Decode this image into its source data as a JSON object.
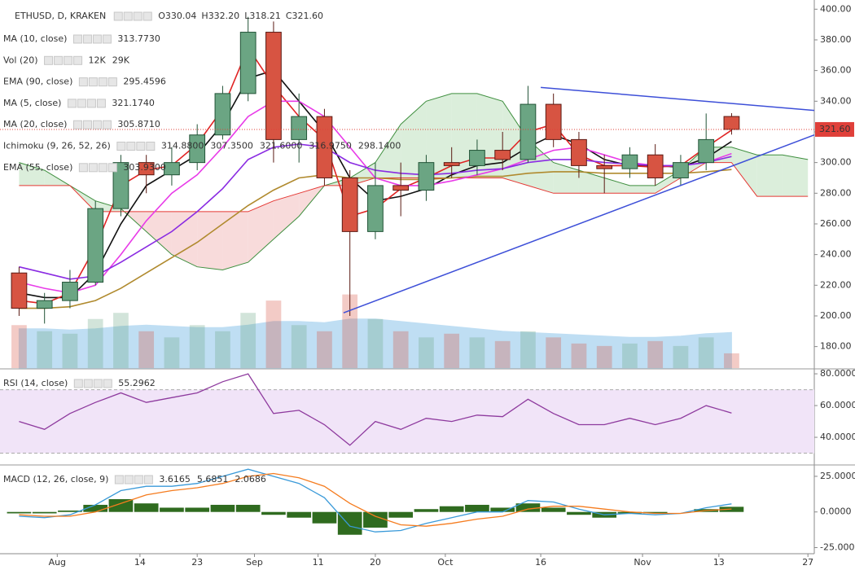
{
  "chart_data": [
    {
      "type": "candlestick",
      "title": "ETHUSD, D, KRAKEN",
      "ohlc_letters": [
        "O",
        "H",
        "L",
        "C"
      ],
      "last_bar_labels": [
        "330.04",
        "332.20",
        "318.21",
        "321.60"
      ],
      "x": [
        "Jul 26",
        "Jul 30",
        "Aug 3",
        "Aug 7",
        "Aug 11",
        "Aug 15",
        "Aug 19",
        "Aug 23",
        "Aug 27",
        "Aug 31",
        "Sep 4",
        "Sep 8",
        "Sep 12",
        "Sep 16",
        "Sep 20",
        "Sep 24",
        "Sep 28",
        "Oct 2",
        "Oct 6",
        "Oct 10",
        "Oct 14",
        "Oct 18",
        "Oct 22",
        "Oct 26",
        "Oct 30",
        "Nov 3",
        "Nov 7",
        "Nov 11",
        "Nov 15"
      ],
      "open": [
        228,
        205,
        210,
        222,
        270,
        300,
        292,
        300,
        318,
        345,
        385,
        315,
        330,
        290,
        255,
        285,
        282,
        300,
        298,
        308,
        302,
        338,
        315,
        298,
        296,
        305,
        290,
        300,
        330.04
      ],
      "high": [
        232,
        215,
        230,
        275,
        305,
        305,
        310,
        325,
        350,
        395,
        392,
        345,
        335,
        295,
        300,
        300,
        305,
        310,
        315,
        320,
        350,
        345,
        320,
        305,
        310,
        312,
        305,
        332,
        332.2
      ],
      "low": [
        200,
        195,
        205,
        220,
        265,
        280,
        285,
        295,
        315,
        340,
        300,
        300,
        285,
        200,
        250,
        265,
        275,
        290,
        292,
        295,
        300,
        310,
        290,
        280,
        290,
        285,
        285,
        295,
        318.21
      ],
      "close": [
        205,
        210,
        222,
        270,
        300,
        292,
        300,
        318,
        345,
        385,
        315,
        330,
        290,
        255,
        285,
        282,
        300,
        298,
        308,
        302,
        338,
        315,
        298,
        296,
        305,
        290,
        300,
        315,
        321.6
      ],
      "up_color": "#6ba583",
      "down_color": "#d75442",
      "xlim": [
        "Jul 23",
        "Nov 28"
      ],
      "xticks": [
        {
          "value": "Aug 1",
          "label": "Aug"
        },
        {
          "value": "Aug 14",
          "label": "14"
        },
        {
          "value": "Aug 23",
          "label": "23"
        },
        {
          "value": "Sep 1",
          "label": "Sep"
        },
        {
          "value": "Sep 11",
          "label": "11"
        },
        {
          "value": "Sep 20",
          "label": "20"
        },
        {
          "value": "Oct 1",
          "label": "Oct"
        },
        {
          "value": "Oct 16",
          "label": "16"
        },
        {
          "value": "Nov 1",
          "label": "Nov"
        },
        {
          "value": "Nov 13",
          "label": "13"
        },
        {
          "value": "Nov 27",
          "label": "27"
        }
      ],
      "ylim": [
        166,
        406
      ],
      "yticks": [
        {
          "value": 400,
          "label": "400.00"
        },
        {
          "value": 380,
          "label": "380.00"
        },
        {
          "value": 360,
          "label": "360.00"
        },
        {
          "value": 340,
          "label": "340.00"
        },
        {
          "value": 320,
          "label": "320.00"
        },
        {
          "value": 300,
          "label": "300.00"
        },
        {
          "value": 280,
          "label": "280.00"
        },
        {
          "value": 260,
          "label": "260.00"
        },
        {
          "value": 240,
          "label": "240.00"
        },
        {
          "value": 220,
          "label": "220.00"
        },
        {
          "value": 200,
          "label": "200.00"
        },
        {
          "value": 180,
          "label": "180.00"
        }
      ],
      "last_price_label": "321.60",
      "last_price_color": "#e0403a",
      "series": [
        {
          "name": "MA (10, close)",
          "color": "#111111",
          "last_label": "313.7730",
          "values": [
            215,
            212,
            212,
            228,
            260,
            285,
            295,
            305,
            325,
            355,
            360,
            340,
            320,
            290,
            275,
            278,
            283,
            292,
            298,
            300,
            310,
            318,
            312,
            302,
            298,
            298,
            297,
            303,
            313.773
          ]
        },
        {
          "name": "EMA (90, close)",
          "color": "#b08a2e",
          "last_label": "295.4596",
          "values": [
            205,
            205,
            206,
            210,
            218,
            228,
            238,
            248,
            260,
            272,
            282,
            290,
            292,
            290,
            290,
            289,
            289,
            290,
            291,
            291,
            293,
            294,
            294,
            293,
            293,
            293,
            293,
            294,
            295.4596
          ]
        },
        {
          "name": "MA (5, close)",
          "color": "#e02424",
          "last_label": "321.1740",
          "values": [
            210,
            208,
            215,
            245,
            285,
            295,
            298,
            312,
            335,
            375,
            350,
            330,
            315,
            265,
            270,
            283,
            290,
            298,
            303,
            303,
            320,
            325,
            305,
            298,
            298,
            297,
            298,
            310,
            321.174
          ]
        },
        {
          "name": "MA (20, close)",
          "color": "#e83be8",
          "last_label": "305.8710",
          "values": [
            222,
            218,
            215,
            220,
            240,
            262,
            280,
            292,
            310,
            330,
            340,
            340,
            330,
            310,
            290,
            285,
            285,
            288,
            292,
            296,
            302,
            308,
            310,
            305,
            300,
            298,
            298,
            300,
            305.871
          ]
        },
        {
          "name": "EMA (55, close)",
          "color": "#8a2be2",
          "last_label": "303.9300",
          "values": [
            232,
            228,
            224,
            226,
            235,
            245,
            255,
            268,
            283,
            302,
            310,
            312,
            310,
            300,
            295,
            293,
            292,
            293,
            295,
            296,
            300,
            302,
            302,
            300,
            299,
            298,
            298,
            300,
            303.93
          ]
        }
      ],
      "volume": {
        "name": "Vol (20)",
        "last_label": "12K",
        "label_color": "#222222",
        "vlim": [
          0,
          300
        ],
        "values": [
          35,
          30,
          28,
          40,
          45,
          30,
          25,
          35,
          30,
          45,
          55,
          35,
          30,
          60,
          40,
          30,
          25,
          28,
          25,
          22,
          30,
          25,
          20,
          18,
          20,
          22,
          18,
          25,
          12
        ],
        "ma": {
          "color": "#4aa3df",
          "last_label": "29K",
          "values": [
            32,
            32,
            31,
            32,
            34,
            35,
            34,
            33,
            33,
            35,
            38,
            38,
            37,
            40,
            40,
            38,
            36,
            34,
            32,
            30,
            29,
            28,
            27,
            26,
            25,
            25,
            26,
            28,
            29
          ]
        }
      },
      "ichimoku": {
        "name": "Ichimoku (9, 26, 52, 26)",
        "labels": [
          {
            "text": "314.8800",
            "color": "#2196f3"
          },
          {
            "text": "307.3500",
            "color": "#5d4037"
          },
          {
            "text": "321.6000",
            "color": "#2e7d32"
          },
          {
            "text": "316.9750",
            "color": "#43a047"
          },
          {
            "text": "298.1400",
            "color": "#e53935"
          }
        ],
        "x": [
          "Jul 26",
          "Jul 30",
          "Aug 3",
          "Aug 7",
          "Aug 11",
          "Aug 15",
          "Aug 19",
          "Aug 23",
          "Aug 27",
          "Aug 31",
          "Sep 4",
          "Sep 8",
          "Sep 12",
          "Sep 16",
          "Sep 20",
          "Sep 24",
          "Sep 28",
          "Oct 2",
          "Oct 6",
          "Oct 10",
          "Oct 14",
          "Oct 18",
          "Oct 22",
          "Oct 26",
          "Oct 30",
          "Nov 3",
          "Nov 7",
          "Nov 11",
          "Nov 15",
          "Nov 19",
          "Nov 23",
          "Nov 27"
        ],
        "span_a": [
          300,
          295,
          285,
          275,
          270,
          255,
          240,
          232,
          230,
          235,
          250,
          265,
          285,
          290,
          300,
          325,
          340,
          345,
          345,
          340,
          315,
          300,
          295,
          290,
          285,
          285,
          295,
          310,
          310,
          305,
          305,
          302
        ],
        "span_b": [
          285,
          285,
          285,
          268,
          268,
          268,
          268,
          268,
          268,
          268,
          275,
          280,
          285,
          285,
          290,
          290,
          290,
          290,
          290,
          290,
          285,
          280,
          280,
          280,
          280,
          280,
          290,
          300,
          300,
          278,
          278,
          278
        ],
        "span_a_color": "#3f8f3f",
        "span_b_color": "#e53935",
        "up_fill": "#cfe8cf",
        "down_fill": "#f6cfcf"
      },
      "trendlines": [
        {
          "x": [
            "Oct 16",
            "Nov 28"
          ],
          "y": [
            349,
            334
          ],
          "color": "#3d4fd8"
        },
        {
          "x": [
            "Sep 15",
            "Nov 28"
          ],
          "y": [
            202,
            318
          ],
          "color": "#3d4fd8"
        }
      ]
    },
    {
      "type": "line",
      "title": "RSI (14, close)",
      "x": [
        "Jul 26",
        "Jul 30",
        "Aug 3",
        "Aug 7",
        "Aug 11",
        "Aug 15",
        "Aug 19",
        "Aug 23",
        "Aug 27",
        "Aug 31",
        "Sep 4",
        "Sep 8",
        "Sep 12",
        "Sep 16",
        "Sep 20",
        "Sep 24",
        "Sep 28",
        "Oct 2",
        "Oct 6",
        "Oct 10",
        "Oct 14",
        "Oct 18",
        "Oct 22",
        "Oct 26",
        "Oct 30",
        "Nov 3",
        "Nov 7",
        "Nov 11",
        "Nov 15"
      ],
      "xlim": [
        "Jul 23",
        "Nov 28"
      ],
      "ylim": [
        23.1,
        82.6
      ],
      "yticks": [
        {
          "value": 80,
          "label": "80.0000"
        },
        {
          "value": 60,
          "label": "60.0000"
        },
        {
          "value": 40,
          "label": "40.0000"
        }
      ],
      "band": [
        30,
        70
      ],
      "band_color": "#f1e4f8",
      "series": [
        {
          "color": "#8e3a9e",
          "last_label": "55.2962",
          "values": [
            50,
            45,
            55,
            62,
            68,
            62,
            65,
            68,
            75,
            80,
            55,
            57,
            48,
            35,
            50,
            45,
            52,
            50,
            54,
            53,
            64,
            55,
            48,
            48,
            52,
            48,
            52,
            60,
            55.2962
          ]
        }
      ]
    },
    {
      "type": "macd",
      "title": "MACD (12, 26, close, 9)",
      "x": [
        "Jul 26",
        "Jul 30",
        "Aug 3",
        "Aug 7",
        "Aug 11",
        "Aug 15",
        "Aug 19",
        "Aug 23",
        "Aug 27",
        "Aug 31",
        "Sep 4",
        "Sep 8",
        "Sep 12",
        "Sep 16",
        "Sep 20",
        "Sep 24",
        "Sep 28",
        "Oct 2",
        "Oct 6",
        "Oct 10",
        "Oct 14",
        "Oct 18",
        "Oct 22",
        "Oct 26",
        "Oct 30",
        "Nov 3",
        "Nov 7",
        "Nov 11",
        "Nov 15"
      ],
      "xlim": [
        "Jul 23",
        "Nov 28"
      ],
      "ylim": [
        -29.3,
        32.4
      ],
      "yticks": [
        {
          "value": 25,
          "label": "25.0000"
        },
        {
          "value": 0,
          "label": "0.0000"
        },
        {
          "value": -25,
          "label": "-25.0000"
        }
      ],
      "series": [
        {
          "color": "#2f6b1f",
          "last_label": "3.6165",
          "values": [
            -1,
            -1,
            1,
            5,
            9,
            6,
            3,
            3,
            5,
            5,
            -2,
            -4,
            -8,
            -16,
            -11,
            -4,
            2,
            4,
            5,
            3,
            6,
            3,
            -2,
            -4,
            -1,
            -1,
            0,
            2,
            3.6165
          ]
        },
        {
          "color": "#3a9ad9",
          "last_label": "5.6851",
          "values": [
            -3,
            -4,
            -2,
            5,
            15,
            18,
            18,
            20,
            25,
            30,
            25,
            20,
            10,
            -10,
            -14,
            -13,
            -8,
            -4,
            0,
            0,
            8,
            7,
            2,
            -2,
            -1,
            -2,
            -1,
            3,
            5.6851
          ]
        },
        {
          "color": "#f57c1f",
          "last_label": "2.0686",
          "values": [
            -2,
            -3,
            -3,
            0,
            6,
            12,
            15,
            17,
            20,
            25,
            27,
            24,
            18,
            6,
            -3,
            -9,
            -10,
            -8,
            -5,
            -3,
            2,
            4,
            4,
            2,
            0,
            -1,
            -1,
            1,
            2.0686
          ]
        }
      ]
    }
  ]
}
